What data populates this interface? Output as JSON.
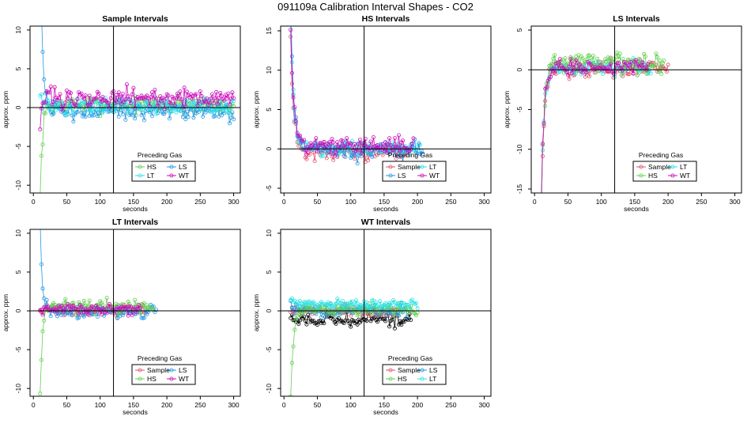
{
  "main_title": "091109a   Calibration Interval Shapes - CO2",
  "legend_title": "Preceding Gas",
  "colors": {
    "Sample": "#df536b",
    "HS": "#61d04f",
    "LS": "#2297e6",
    "LT": "#28e2e5",
    "WT": "#cd0bbc",
    "Self": "#000000"
  },
  "chart_data": [
    {
      "type": "scatter",
      "title": "Sample Intervals",
      "xlabel": "seconds",
      "ylabel": "approx. ppm",
      "xlim": [
        -5,
        310
      ],
      "ylim": [
        -11,
        10.5
      ],
      "xticks": [
        0,
        50,
        100,
        150,
        200,
        250,
        300
      ],
      "yticks": [
        -10,
        -5,
        0,
        5,
        10
      ],
      "vline": 120,
      "hline": 0,
      "legend": [
        "HS",
        "LS",
        "LT",
        "WT"
      ],
      "series": [
        {
          "name": "HS",
          "x_end": 300,
          "level": 0.4,
          "noise": 0.9,
          "start": -12,
          "tau": 3.5
        },
        {
          "name": "LS",
          "x_end": 300,
          "level": -0.5,
          "noise": 1.0,
          "start": 20,
          "tau": 4
        },
        {
          "name": "LT",
          "x_end": 300,
          "level": 0.2,
          "noise": 0.8,
          "start": 2,
          "tau": 3
        },
        {
          "name": "WT",
          "x_end": 300,
          "level": 1.2,
          "noise": 1.0,
          "start": -3,
          "tau": 3
        }
      ]
    },
    {
      "type": "scatter",
      "title": "HS Intervals",
      "xlabel": "seconds",
      "ylabel": "approx. ppm",
      "xlim": [
        -5,
        310
      ],
      "ylim": [
        -5.6,
        15.6
      ],
      "xticks": [
        0,
        50,
        100,
        150,
        200,
        250,
        300
      ],
      "yticks": [
        -5,
        0,
        5,
        10,
        15
      ],
      "vline": 120,
      "hline": 0,
      "legend": [
        "Sample",
        "LT",
        "LS",
        "WT"
      ],
      "series": [
        {
          "name": "Sample",
          "x_end": 185,
          "level": -0.3,
          "noise": 0.9,
          "start": 14,
          "tau": 5
        },
        {
          "name": "LT",
          "x_end": 205,
          "level": 0.1,
          "noise": 0.7,
          "start": 16,
          "tau": 5
        },
        {
          "name": "LS",
          "x_end": 208,
          "level": -0.2,
          "noise": 0.9,
          "start": 17,
          "tau": 5
        },
        {
          "name": "WT",
          "x_end": 195,
          "level": 0.4,
          "noise": 0.8,
          "start": 15,
          "tau": 5
        }
      ]
    },
    {
      "type": "scatter",
      "title": "LS Intervals",
      "xlabel": "seconds",
      "ylabel": "approx. ppm",
      "xlim": [
        -5,
        310
      ],
      "ylim": [
        -15.5,
        5.5
      ],
      "xticks": [
        0,
        50,
        100,
        150,
        200,
        250,
        300
      ],
      "yticks": [
        -15,
        -10,
        -5,
        0,
        5
      ],
      "vline": 120,
      "hline": 0,
      "legend": [
        "Sample",
        "LT",
        "HS",
        "WT"
      ],
      "series": [
        {
          "name": "Sample",
          "x_end": 200,
          "level": 0.2,
          "noise": 0.8,
          "start": -18,
          "tau": 4
        },
        {
          "name": "LT",
          "x_end": 175,
          "level": 0.3,
          "noise": 0.7,
          "start": -17,
          "tau": 4
        },
        {
          "name": "HS",
          "x_end": 195,
          "level": 0.9,
          "noise": 1.1,
          "start": -19,
          "tau": 4
        },
        {
          "name": "WT",
          "x_end": 170,
          "level": 0.4,
          "noise": 0.7,
          "start": -16,
          "tau": 4
        }
      ]
    },
    {
      "type": "scatter",
      "title": "LT Intervals",
      "xlabel": "seconds",
      "ylabel": "approx. ppm",
      "xlim": [
        -5,
        310
      ],
      "ylim": [
        -11,
        10.5
      ],
      "xticks": [
        0,
        50,
        100,
        150,
        200,
        250,
        300
      ],
      "yticks": [
        -10,
        -5,
        0,
        5,
        10
      ],
      "vline": 120,
      "hline": 0,
      "legend": [
        "Sample",
        "LS",
        "HS",
        "WT"
      ],
      "series": [
        {
          "name": "Sample",
          "x_end": 170,
          "level": 0.0,
          "noise": 0.6,
          "start": 0,
          "tau": 3
        },
        {
          "name": "LS",
          "x_end": 185,
          "level": -0.1,
          "noise": 0.7,
          "start": 12,
          "tau": 3
        },
        {
          "name": "HS",
          "x_end": 180,
          "level": 0.5,
          "noise": 0.7,
          "start": -11,
          "tau": 3
        },
        {
          "name": "WT",
          "x_end": 160,
          "level": 0.2,
          "noise": 0.5,
          "start": 0,
          "tau": 3
        }
      ]
    },
    {
      "type": "scatter",
      "title": "WT Intervals",
      "xlabel": "seconds",
      "ylabel": "approx. ppm",
      "xlim": [
        -5,
        310
      ],
      "ylim": [
        -11,
        10.5
      ],
      "xticks": [
        0,
        50,
        100,
        150,
        200,
        250,
        300
      ],
      "yticks": [
        -10,
        -5,
        0,
        5,
        10
      ],
      "vline": 120,
      "hline": 0,
      "legend": [
        "Sample",
        "LS",
        "HS",
        "LT"
      ],
      "series": [
        {
          "name": "Self",
          "x_end": 190,
          "level": -1.1,
          "noise": 0.7,
          "start": -1,
          "tau": 3,
          "in_legend": false
        },
        {
          "name": "Sample",
          "x_end": 170,
          "level": 0.0,
          "noise": 0.5,
          "start": 0,
          "tau": 3
        },
        {
          "name": "LS",
          "x_end": 185,
          "level": 0.0,
          "noise": 0.6,
          "start": 1,
          "tau": 3
        },
        {
          "name": "HS",
          "x_end": 200,
          "level": 0.1,
          "noise": 0.6,
          "start": -11,
          "tau": 4
        },
        {
          "name": "LT",
          "x_end": 200,
          "level": 0.9,
          "noise": 0.5,
          "start": 1,
          "tau": 3
        }
      ]
    }
  ]
}
